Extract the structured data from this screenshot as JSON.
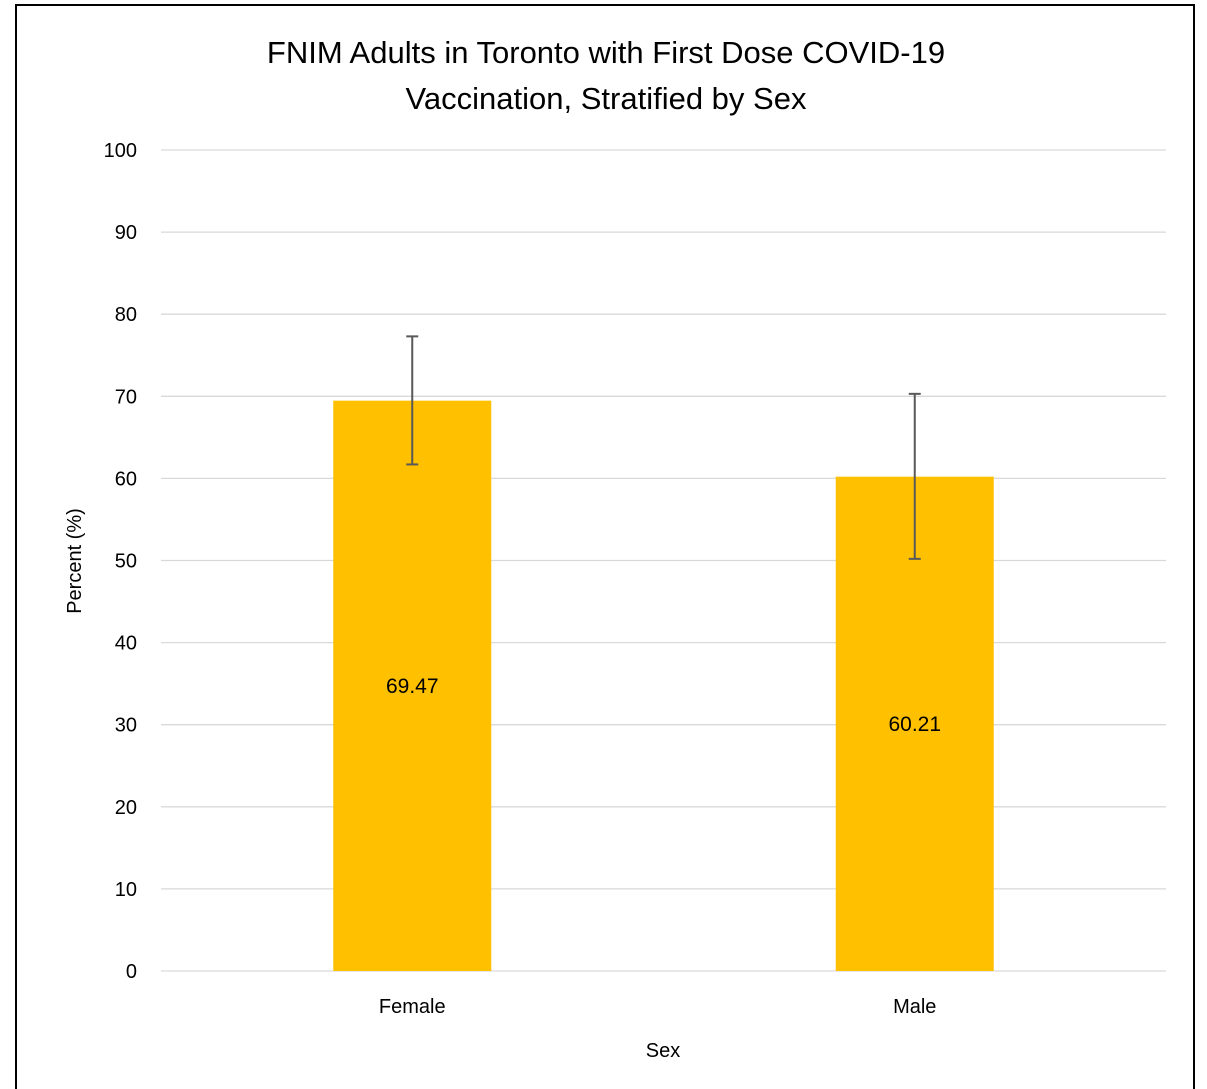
{
  "chart_data": {
    "type": "bar",
    "title_lines": [
      "FNIM Adults in Toronto with First Dose COVID-19",
      "Vaccination, Stratified by Sex"
    ],
    "xlabel": "Sex",
    "ylabel": "Percent (%)",
    "categories": [
      "Female",
      "Male"
    ],
    "values": [
      69.47,
      60.21
    ],
    "value_labels": [
      "69.47",
      "60.21"
    ],
    "error_low": [
      61.7,
      50.2
    ],
    "error_high": [
      77.3,
      70.3
    ],
    "ylim": [
      0,
      100
    ],
    "yticks": [
      0,
      10,
      20,
      30,
      40,
      50,
      60,
      70,
      80,
      90,
      100
    ],
    "grid": true,
    "legend": "none",
    "bar_color": "#FFC000",
    "error_bar_color": "#595959",
    "gridline_color": "#D9D9D9"
  }
}
